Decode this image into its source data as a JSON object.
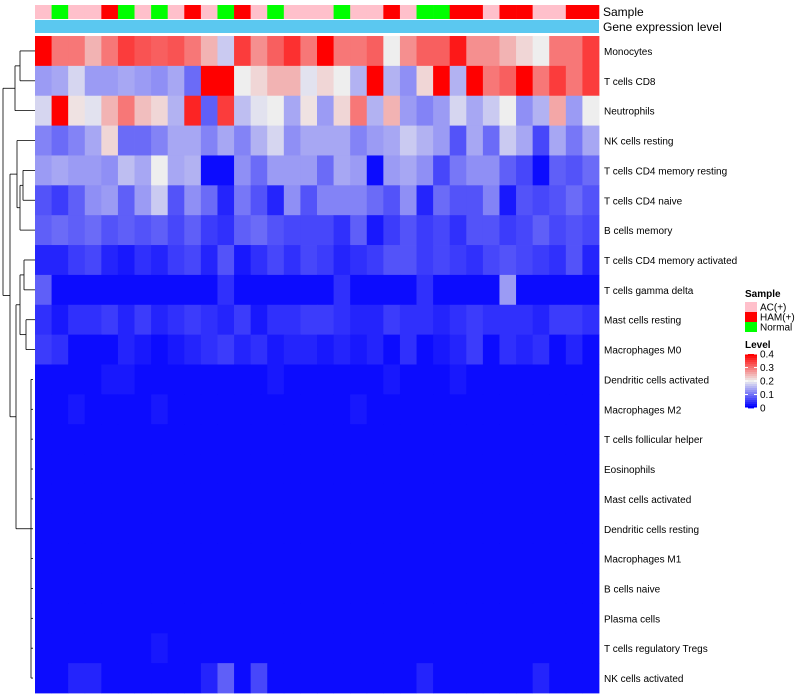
{
  "chart_data": {
    "type": "heatmap",
    "annotation_labels": [
      "Sample",
      "Gene expression level"
    ],
    "row_labels": [
      "Monocytes",
      "T cells CD8",
      "Neutrophils",
      "NK cells resting",
      "T cells CD4 memory resting",
      "T cells CD4 naive",
      "B cells memory",
      "T cells CD4 memory activated",
      "T cells gamma delta",
      "Mast cells resting",
      "Macrophages M0",
      "Dendritic cells activated",
      "Macrophages M2",
      "T cells follicular helper",
      "Eosinophils",
      "Mast cells activated",
      "Dendritic cells resting",
      "Macrophages M1",
      "B cells naive",
      "Plasma cells",
      "T cells regulatory  Tregs",
      "NK cells activated"
    ],
    "samples": [
      "AC(+)",
      "Normal",
      "AC(+)",
      "AC(+)",
      "HAM(+)",
      "Normal",
      "AC(+)",
      "Normal",
      "AC(+)",
      "HAM(+)",
      "AC(+)",
      "Normal",
      "HAM(+)",
      "AC(+)",
      "Normal",
      "AC(+)",
      "AC(+)",
      "AC(+)",
      "Normal",
      "AC(+)",
      "AC(+)",
      "HAM(+)",
      "AC(+)",
      "Normal",
      "Normal",
      "HAM(+)",
      "HAM(+)",
      "AC(+)",
      "HAM(+)",
      "HAM(+)",
      "AC(+)",
      "AC(+)",
      "HAM(+)",
      "HAM(+)"
    ],
    "values": [
      [
        0.4,
        0.3,
        0.3,
        0.25,
        0.3,
        0.35,
        0.33,
        0.32,
        0.33,
        0.3,
        0.25,
        0.17,
        0.35,
        0.28,
        0.32,
        0.36,
        0.3,
        0.4,
        0.3,
        0.3,
        0.32,
        0.2,
        0.28,
        0.32,
        0.32,
        0.38,
        0.28,
        0.28,
        0.25,
        0.22,
        0.2,
        0.3,
        0.3,
        0.35
      ],
      [
        0.13,
        0.14,
        0.18,
        0.13,
        0.13,
        0.14,
        0.13,
        0.12,
        0.14,
        0.09,
        0.4,
        0.4,
        0.2,
        0.22,
        0.25,
        0.25,
        0.19,
        0.22,
        0.2,
        0.15,
        0.4,
        0.15,
        0.12,
        0.22,
        0.4,
        0.15,
        0.4,
        0.3,
        0.32,
        0.4,
        0.3,
        0.35,
        0.3,
        0.35
      ],
      [
        0.18,
        0.4,
        0.21,
        0.19,
        0.25,
        0.3,
        0.24,
        0.22,
        0.15,
        0.37,
        0.08,
        0.35,
        0.16,
        0.19,
        0.2,
        0.14,
        0.21,
        0.13,
        0.22,
        0.3,
        0.15,
        0.25,
        0.13,
        0.11,
        0.13,
        0.18,
        0.14,
        0.17,
        0.2,
        0.12,
        0.15,
        0.26,
        0.13,
        0.2
      ],
      [
        0.11,
        0.09,
        0.11,
        0.14,
        0.22,
        0.09,
        0.09,
        0.11,
        0.14,
        0.14,
        0.11,
        0.14,
        0.11,
        0.15,
        0.18,
        0.12,
        0.14,
        0.14,
        0.14,
        0.11,
        0.13,
        0.14,
        0.17,
        0.15,
        0.13,
        0.07,
        0.14,
        0.09,
        0.17,
        0.14,
        0.06,
        0.14,
        0.1,
        0.14
      ],
      [
        0.13,
        0.14,
        0.13,
        0.13,
        0.12,
        0.16,
        0.14,
        0.2,
        0.14,
        0.15,
        0.01,
        0.01,
        0.12,
        0.09,
        0.13,
        0.13,
        0.13,
        0.09,
        0.14,
        0.13,
        0.01,
        0.13,
        0.14,
        0.12,
        0.06,
        0.1,
        0.12,
        0.12,
        0.08,
        0.06,
        0.01,
        0.08,
        0.07,
        0.09
      ],
      [
        0.07,
        0.05,
        0.08,
        0.12,
        0.13,
        0.08,
        0.13,
        0.17,
        0.07,
        0.12,
        0.09,
        0.03,
        0.1,
        0.07,
        0.03,
        0.12,
        0.07,
        0.11,
        0.11,
        0.11,
        0.09,
        0.07,
        0.12,
        0.03,
        0.09,
        0.07,
        0.07,
        0.11,
        0.02,
        0.07,
        0.06,
        0.07,
        0.09,
        0.07
      ],
      [
        0.08,
        0.09,
        0.08,
        0.09,
        0.07,
        0.08,
        0.07,
        0.08,
        0.06,
        0.08,
        0.05,
        0.04,
        0.08,
        0.09,
        0.07,
        0.06,
        0.06,
        0.06,
        0.04,
        0.08,
        0.02,
        0.05,
        0.07,
        0.05,
        0.06,
        0.04,
        0.07,
        0.07,
        0.05,
        0.06,
        0.08,
        0.06,
        0.07,
        0.06
      ],
      [
        0.03,
        0.03,
        0.05,
        0.06,
        0.03,
        0.02,
        0.04,
        0.03,
        0.05,
        0.06,
        0.03,
        0.07,
        0.02,
        0.04,
        0.06,
        0.04,
        0.06,
        0.05,
        0.03,
        0.04,
        0.05,
        0.07,
        0.07,
        0.05,
        0.06,
        0.05,
        0.04,
        0.06,
        0.07,
        0.06,
        0.05,
        0.04,
        0.07,
        0.03
      ],
      [
        0.08,
        0.01,
        0.01,
        0.01,
        0.01,
        0.01,
        0.01,
        0.01,
        0.01,
        0.01,
        0.01,
        0.04,
        0.01,
        0.01,
        0.01,
        0.01,
        0.01,
        0.01,
        0.04,
        0.01,
        0.01,
        0.01,
        0.01,
        0.04,
        0.01,
        0.01,
        0.01,
        0.01,
        0.13,
        0.01,
        0.01,
        0.01,
        0.01,
        0.01
      ],
      [
        0.04,
        0.02,
        0.04,
        0.04,
        0.05,
        0.03,
        0.05,
        0.03,
        0.04,
        0.05,
        0.04,
        0.03,
        0.05,
        0.02,
        0.04,
        0.04,
        0.05,
        0.05,
        0.04,
        0.03,
        0.03,
        0.05,
        0.04,
        0.04,
        0.03,
        0.04,
        0.05,
        0.04,
        0.04,
        0.04,
        0.03,
        0.05,
        0.05,
        0.04
      ],
      [
        0.05,
        0.04,
        0.01,
        0.01,
        0.01,
        0.03,
        0.02,
        0.01,
        0.02,
        0.03,
        0.04,
        0.05,
        0.03,
        0.04,
        0.02,
        0.03,
        0.03,
        0.02,
        0.03,
        0.02,
        0.03,
        0.01,
        0.04,
        0.01,
        0.02,
        0.03,
        0.05,
        0.01,
        0.04,
        0.03,
        0.04,
        0.01,
        0.03,
        0.01
      ],
      [
        0.01,
        0.01,
        0.01,
        0.01,
        0.02,
        0.02,
        0.01,
        0.01,
        0.01,
        0.01,
        0.01,
        0.01,
        0.01,
        0.01,
        0.02,
        0.01,
        0.01,
        0.01,
        0.01,
        0.01,
        0.01,
        0.02,
        0.01,
        0.01,
        0.01,
        0.02,
        0.01,
        0.01,
        0.01,
        0.01,
        0.01,
        0.01,
        0.01,
        0.01
      ],
      [
        0.01,
        0.01,
        0.02,
        0.01,
        0.01,
        0.01,
        0.01,
        0.02,
        0.01,
        0.01,
        0.01,
        0.01,
        0.01,
        0.01,
        0.01,
        0.01,
        0.01,
        0.01,
        0.01,
        0.02,
        0.01,
        0.01,
        0.01,
        0.01,
        0.01,
        0.01,
        0.01,
        0.01,
        0.01,
        0.01,
        0.01,
        0.01,
        0.01,
        0.01
      ],
      [
        0.01,
        0.01,
        0.01,
        0.01,
        0.01,
        0.01,
        0.01,
        0.01,
        0.01,
        0.01,
        0.01,
        0.01,
        0.01,
        0.01,
        0.01,
        0.01,
        0.01,
        0.01,
        0.01,
        0.01,
        0.01,
        0.01,
        0.01,
        0.01,
        0.01,
        0.01,
        0.01,
        0.01,
        0.01,
        0.01,
        0.01,
        0.01,
        0.01,
        0.01
      ],
      [
        0.01,
        0.01,
        0.01,
        0.01,
        0.01,
        0.01,
        0.01,
        0.01,
        0.01,
        0.01,
        0.01,
        0.01,
        0.01,
        0.01,
        0.01,
        0.01,
        0.01,
        0.01,
        0.01,
        0.01,
        0.01,
        0.01,
        0.01,
        0.01,
        0.01,
        0.01,
        0.01,
        0.01,
        0.01,
        0.01,
        0.01,
        0.01,
        0.01,
        0.01
      ],
      [
        0.01,
        0.01,
        0.01,
        0.01,
        0.01,
        0.01,
        0.01,
        0.01,
        0.01,
        0.01,
        0.01,
        0.01,
        0.01,
        0.01,
        0.01,
        0.01,
        0.01,
        0.01,
        0.01,
        0.01,
        0.01,
        0.01,
        0.01,
        0.01,
        0.01,
        0.01,
        0.01,
        0.01,
        0.01,
        0.01,
        0.01,
        0.01,
        0.01,
        0.01
      ],
      [
        0.01,
        0.01,
        0.01,
        0.01,
        0.01,
        0.01,
        0.01,
        0.01,
        0.01,
        0.01,
        0.01,
        0.01,
        0.01,
        0.01,
        0.01,
        0.01,
        0.01,
        0.01,
        0.01,
        0.01,
        0.01,
        0.01,
        0.01,
        0.01,
        0.01,
        0.01,
        0.01,
        0.01,
        0.01,
        0.01,
        0.01,
        0.01,
        0.01,
        0.01
      ],
      [
        0.01,
        0.01,
        0.01,
        0.01,
        0.01,
        0.01,
        0.01,
        0.01,
        0.01,
        0.01,
        0.01,
        0.01,
        0.01,
        0.01,
        0.01,
        0.01,
        0.01,
        0.01,
        0.01,
        0.01,
        0.01,
        0.01,
        0.01,
        0.01,
        0.01,
        0.01,
        0.01,
        0.01,
        0.01,
        0.01,
        0.01,
        0.01,
        0.01,
        0.01
      ],
      [
        0.01,
        0.01,
        0.01,
        0.01,
        0.01,
        0.01,
        0.01,
        0.01,
        0.01,
        0.01,
        0.01,
        0.01,
        0.01,
        0.01,
        0.01,
        0.01,
        0.01,
        0.01,
        0.01,
        0.01,
        0.01,
        0.01,
        0.01,
        0.01,
        0.01,
        0.01,
        0.01,
        0.01,
        0.01,
        0.01,
        0.01,
        0.01,
        0.01,
        0.01
      ],
      [
        0.01,
        0.01,
        0.01,
        0.01,
        0.01,
        0.01,
        0.01,
        0.01,
        0.01,
        0.01,
        0.01,
        0.01,
        0.01,
        0.01,
        0.01,
        0.01,
        0.01,
        0.01,
        0.01,
        0.01,
        0.01,
        0.01,
        0.01,
        0.01,
        0.01,
        0.01,
        0.01,
        0.01,
        0.01,
        0.01,
        0.01,
        0.01,
        0.01,
        0.01
      ],
      [
        0.01,
        0.01,
        0.01,
        0.01,
        0.01,
        0.01,
        0.01,
        0.02,
        0.01,
        0.01,
        0.01,
        0.01,
        0.01,
        0.01,
        0.01,
        0.01,
        0.01,
        0.01,
        0.01,
        0.01,
        0.01,
        0.01,
        0.01,
        0.01,
        0.01,
        0.01,
        0.01,
        0.01,
        0.01,
        0.01,
        0.01,
        0.01,
        0.01,
        0.01
      ],
      [
        0.01,
        0.01,
        0.03,
        0.03,
        0.01,
        0.01,
        0.01,
        0.01,
        0.01,
        0.01,
        0.03,
        0.08,
        0.01,
        0.06,
        0.01,
        0.01,
        0.01,
        0.01,
        0.01,
        0.01,
        0.01,
        0.01,
        0.01,
        0.03,
        0.01,
        0.01,
        0.01,
        0.01,
        0.01,
        0.01,
        0.03,
        0.01,
        0.01,
        0.01
      ]
    ],
    "legend_sample": {
      "title": "Sample",
      "entries": [
        {
          "label": "AC(+)",
          "color": "#ffc0cb"
        },
        {
          "label": "HAM(+)",
          "color": "#ff0000"
        },
        {
          "label": "Normal",
          "color": "#00ff00"
        }
      ]
    },
    "legend_level": {
      "title": "Level",
      "ticks": [
        "0.4",
        "0.3",
        "0.2",
        "0.1",
        "0"
      ],
      "range": [
        0,
        0.4
      ]
    },
    "colors": {
      "low": "#0000ff",
      "mid": "#eeeeee",
      "high": "#ff0000",
      "expression_bar": "#5bc8f0"
    }
  }
}
